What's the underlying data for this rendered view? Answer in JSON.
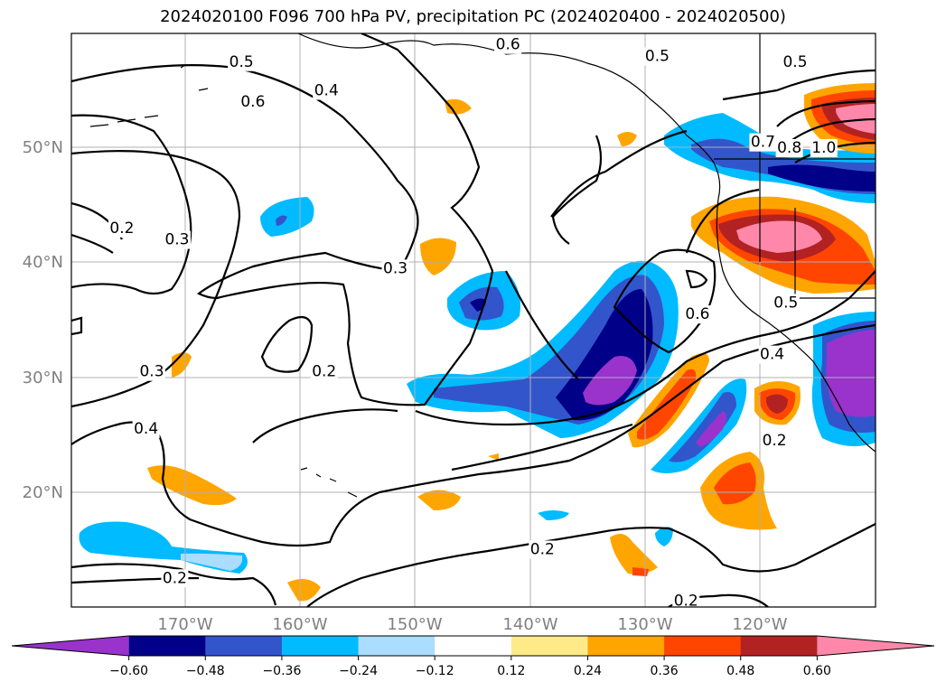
{
  "title": "2024020100 F096 700 hPa PV, precipitation PC (2024020400 - 2024020500)",
  "map": {
    "lon_labels": [
      "170°W",
      "160°W",
      "150°W",
      "140°W",
      "130°W",
      "120°W"
    ],
    "lat_labels": [
      "50°N",
      "40°N",
      "30°N",
      "20°N"
    ],
    "lon_range": [
      -180,
      -110
    ],
    "lat_range": [
      10,
      60
    ],
    "gridlines": true
  },
  "contour_labels": [
    {
      "text": "0.6",
      "lon": -142.0,
      "lat": 59.0
    },
    {
      "text": "0.5",
      "lon": -165.2,
      "lat": 57.5
    },
    {
      "text": "0.4",
      "lon": -157.8,
      "lat": 55.0
    },
    {
      "text": "0.6",
      "lon": -164.2,
      "lat": 54.0
    },
    {
      "text": "0.5",
      "lon": -129.0,
      "lat": 58.0
    },
    {
      "text": "0.5",
      "lon": -117.0,
      "lat": 57.5
    },
    {
      "text": "0.7",
      "lon": -119.8,
      "lat": 50.5
    },
    {
      "text": "0.8",
      "lon": -117.5,
      "lat": 50.0
    },
    {
      "text": "1.0",
      "lon": -114.5,
      "lat": 50.0
    },
    {
      "text": "0.2",
      "lon": -175.6,
      "lat": 43.0
    },
    {
      "text": "0.3",
      "lon": -170.8,
      "lat": 42.0
    },
    {
      "text": "0.3",
      "lon": -151.8,
      "lat": 39.5
    },
    {
      "text": "0.6",
      "lon": -125.5,
      "lat": 35.5
    },
    {
      "text": "0.5",
      "lon": -117.8,
      "lat": 36.5
    },
    {
      "text": "0.4",
      "lon": -119.0,
      "lat": 32.0
    },
    {
      "text": "0.3",
      "lon": -173.0,
      "lat": 30.5
    },
    {
      "text": "0.2",
      "lon": -158.0,
      "lat": 30.5
    },
    {
      "text": "0.4",
      "lon": -173.5,
      "lat": 25.5
    },
    {
      "text": "0.2",
      "lon": -118.8,
      "lat": 24.5
    },
    {
      "text": "0.2",
      "lon": -139.0,
      "lat": 15.0
    },
    {
      "text": "0.2",
      "lon": -171.0,
      "lat": 12.5
    },
    {
      "text": "0.2",
      "lon": -126.5,
      "lat": 10.5
    }
  ],
  "colorbar": {
    "ticks": [
      "−0.60",
      "−0.48",
      "−0.36",
      "−0.24",
      "−0.12",
      "0.12",
      "0.24",
      "0.36",
      "0.48",
      "0.60"
    ],
    "colors": [
      "#9933cc",
      "#000088",
      "#3355cc",
      "#00bbff",
      "#aaddff",
      "#ffffff",
      "#ffea8a",
      "#ffa500",
      "#ff4500",
      "#b22222",
      "#ff88aa"
    ]
  },
  "legend_colors": {
    "contour": "#000000",
    "grid": "#b0b0b0",
    "coast": "#000000"
  }
}
